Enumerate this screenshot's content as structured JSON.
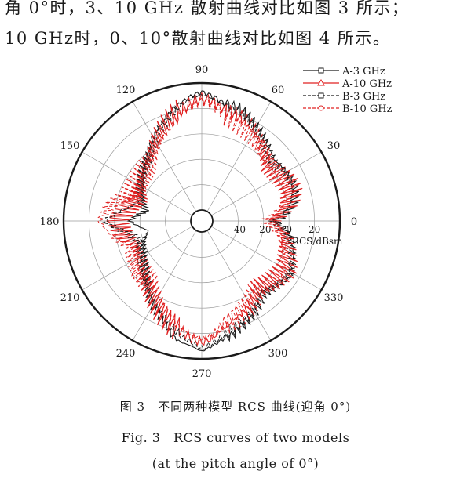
{
  "paragraph": {
    "line1": "角 0°时，3、10 GHz 散射曲线对比如图 3 所示；",
    "line2": "10 GHz时，0、10°散射曲线对比如图 4 所示。"
  },
  "figure": {
    "caption_cn": "图 3　不同两种模型 RCS 曲线(迎角 0°)",
    "caption_en_line1": "Fig. 3　RCS curves of two models",
    "caption_en_line2": "(at the pitch angle of 0°)"
  },
  "chart_data": {
    "type": "polar",
    "angle_ticks": [
      "0",
      "30",
      "60",
      "90",
      "120",
      "150",
      "180",
      "210",
      "240",
      "270",
      "300",
      "330"
    ],
    "radial_ticks": [
      "-40",
      "-20",
      "0",
      "20"
    ],
    "radial_label": "RCS/dBsm",
    "radial_range": [
      -60,
      40
    ],
    "grid": true,
    "legend_position": "top-right",
    "series": [
      {
        "name": "A-3 GHz",
        "color": "#1a1a1a",
        "style": "solid",
        "marker": "square",
        "theta_deg": [
          0,
          10,
          20,
          30,
          40,
          50,
          60,
          70,
          75,
          80,
          85,
          90,
          95,
          100,
          105,
          110,
          120,
          130,
          140,
          150,
          160,
          170,
          180,
          190,
          200,
          210,
          220,
          230,
          240,
          250,
          255,
          260,
          265,
          270,
          275,
          280,
          285,
          290,
          300,
          310,
          320,
          330,
          340,
          350,
          360
        ],
        "rcs_dbsm": [
          -10,
          4,
          9,
          8,
          6,
          11,
          17,
          24,
          25,
          26,
          30,
          33,
          30,
          26,
          22,
          16,
          8,
          -2,
          -8,
          -14,
          -18,
          -24,
          -12,
          -26,
          -20,
          -16,
          -10,
          -2,
          8,
          16,
          24,
          28,
          30,
          34,
          30,
          26,
          24,
          20,
          14,
          6,
          10,
          14,
          8,
          3,
          -10
        ]
      },
      {
        "name": "A-10 GHz",
        "color": "#e02020",
        "style": "solid",
        "marker": "triangle",
        "theta_deg": [
          0,
          10,
          20,
          30,
          40,
          50,
          60,
          70,
          80,
          85,
          90,
          95,
          100,
          110,
          120,
          130,
          140,
          150,
          160,
          170,
          180,
          190,
          200,
          210,
          220,
          230,
          240,
          250,
          260,
          265,
          270,
          275,
          280,
          290,
          300,
          310,
          320,
          330,
          340,
          350,
          360
        ],
        "rcs_dbsm": [
          -14,
          0,
          6,
          4,
          1,
          6,
          12,
          18,
          22,
          26,
          28,
          25,
          20,
          12,
          4,
          -4,
          -8,
          -14,
          -16,
          -8,
          0,
          -6,
          -14,
          -10,
          -6,
          -2,
          4,
          12,
          20,
          24,
          27,
          24,
          18,
          12,
          8,
          2,
          6,
          8,
          2,
          -2,
          -14
        ]
      },
      {
        "name": "B-3 GHz",
        "color": "#1a1a1a",
        "style": "dashed",
        "marker": "square",
        "theta_deg": [
          0,
          10,
          20,
          30,
          40,
          50,
          60,
          70,
          80,
          85,
          90,
          95,
          100,
          110,
          120,
          130,
          140,
          150,
          160,
          170,
          180,
          190,
          200,
          210,
          220,
          230,
          240,
          250,
          260,
          265,
          270,
          275,
          280,
          290,
          300,
          310,
          320,
          330,
          340,
          350,
          360
        ],
        "rcs_dbsm": [
          -12,
          2,
          8,
          7,
          4,
          9,
          15,
          22,
          25,
          28,
          31,
          28,
          24,
          14,
          6,
          -4,
          -10,
          -15,
          -20,
          -10,
          8,
          -12,
          -18,
          -14,
          -8,
          -2,
          6,
          14,
          24,
          27,
          32,
          28,
          24,
          18,
          12,
          4,
          8,
          12,
          6,
          1,
          -12
        ]
      },
      {
        "name": "B-10 GHz",
        "color": "#e02020",
        "style": "dashed",
        "marker": "circle",
        "theta_deg": [
          0,
          10,
          20,
          30,
          40,
          50,
          60,
          70,
          80,
          85,
          90,
          95,
          100,
          110,
          120,
          130,
          140,
          150,
          160,
          170,
          180,
          190,
          200,
          210,
          220,
          230,
          240,
          250,
          260,
          265,
          270,
          275,
          280,
          290,
          300,
          310,
          320,
          330,
          340,
          350,
          360
        ],
        "rcs_dbsm": [
          -16,
          -2,
          4,
          2,
          0,
          4,
          10,
          16,
          20,
          24,
          26,
          22,
          18,
          10,
          2,
          -6,
          -10,
          -12,
          -10,
          4,
          12,
          2,
          -10,
          -8,
          -4,
          -4,
          2,
          10,
          18,
          22,
          25,
          22,
          16,
          10,
          6,
          0,
          4,
          6,
          0,
          -4,
          -16
        ]
      }
    ]
  }
}
